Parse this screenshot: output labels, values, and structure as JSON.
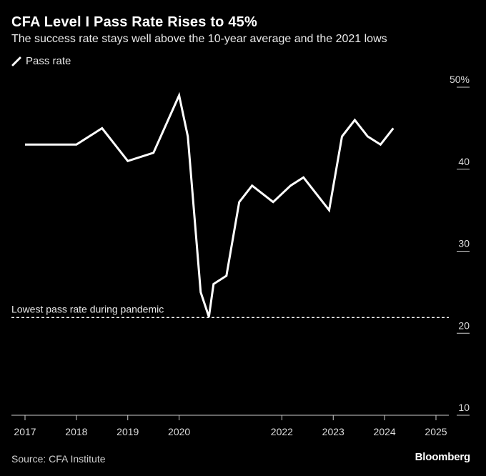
{
  "header": {
    "title": "CFA Level I Pass Rate Rises to 45%",
    "subtitle": "The success rate stays well above the 10-year average and the 2021 lows"
  },
  "legend": {
    "label": "Pass rate",
    "icon": "line-swatch-icon"
  },
  "footer": {
    "source": "Source: CFA Institute",
    "brand": "Bloomberg"
  },
  "colors": {
    "background": "#000000",
    "line": "#ffffff",
    "text": "#ffffff",
    "axis": "#cccccc"
  },
  "chart_data": {
    "type": "line",
    "title": "CFA Level I Pass Rate Rises to 45%",
    "xlabel": "",
    "ylabel": "",
    "xlim": [
      2017,
      2025.2
    ],
    "ylim": [
      10,
      50
    ],
    "y_ticks": [
      10,
      20,
      30,
      40,
      50
    ],
    "y_tick_labels": [
      "10",
      "20",
      "30",
      "40",
      "50%"
    ],
    "x_ticks": [
      2017,
      2018,
      2019,
      2020,
      2022,
      2023,
      2024,
      2025
    ],
    "x_tick_labels": [
      "2017",
      "2018",
      "2019",
      "2020",
      "2022",
      "2023",
      "2024",
      "2025"
    ],
    "grid": false,
    "series": [
      {
        "name": "Pass rate",
        "points": [
          {
            "x": 2017.0,
            "y": 43
          },
          {
            "x": 2018.0,
            "y": 43
          },
          {
            "x": 2018.5,
            "y": 45
          },
          {
            "x": 2019.0,
            "y": 41
          },
          {
            "x": 2019.5,
            "y": 42
          },
          {
            "x": 2020.0,
            "y": 49
          },
          {
            "x": 2020.17,
            "y": 44
          },
          {
            "x": 2020.42,
            "y": 25
          },
          {
            "x": 2020.58,
            "y": 22
          },
          {
            "x": 2020.67,
            "y": 26
          },
          {
            "x": 2020.92,
            "y": 27
          },
          {
            "x": 2021.17,
            "y": 36
          },
          {
            "x": 2021.42,
            "y": 38
          },
          {
            "x": 2021.83,
            "y": 36
          },
          {
            "x": 2022.17,
            "y": 38
          },
          {
            "x": 2022.42,
            "y": 39
          },
          {
            "x": 2022.92,
            "y": 35
          },
          {
            "x": 2023.17,
            "y": 44
          },
          {
            "x": 2023.42,
            "y": 46
          },
          {
            "x": 2023.67,
            "y": 44
          },
          {
            "x": 2023.92,
            "y": 43
          },
          {
            "x": 2024.17,
            "y": 45
          }
        ]
      }
    ],
    "annotations": [
      {
        "label": "Lowest pass rate during pandemic",
        "y": 22,
        "style": "dashed"
      }
    ]
  }
}
